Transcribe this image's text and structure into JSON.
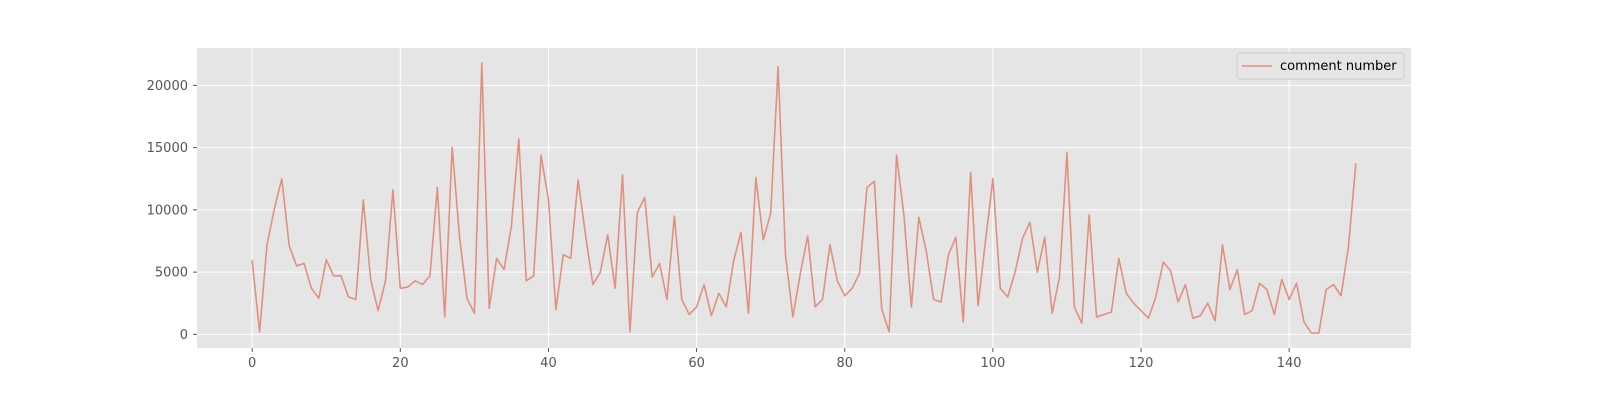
{
  "chart_data": {
    "type": "line",
    "style": "ggplot",
    "grid": true,
    "legend_position": "upper right",
    "xlim": [
      -7.45,
      156.45
    ],
    "ylim": [
      -1095,
      23000
    ],
    "x_ticks": [
      0,
      20,
      40,
      60,
      80,
      100,
      120,
      140
    ],
    "y_ticks": [
      0,
      5000,
      10000,
      15000,
      20000
    ],
    "x_tick_labels": [
      "0",
      "20",
      "40",
      "60",
      "80",
      "100",
      "120",
      "140"
    ],
    "y_tick_labels": [
      "0",
      "5000",
      "10000",
      "15000",
      "20000"
    ],
    "series": [
      {
        "name": "comment number",
        "color": "#e2907e",
        "x": [
          0,
          1,
          2,
          3,
          4,
          5,
          6,
          7,
          8,
          9,
          10,
          11,
          12,
          13,
          14,
          15,
          16,
          17,
          18,
          19,
          20,
          21,
          22,
          23,
          24,
          25,
          26,
          27,
          28,
          29,
          30,
          31,
          32,
          33,
          34,
          35,
          36,
          37,
          38,
          39,
          40,
          41,
          42,
          43,
          44,
          45,
          46,
          47,
          48,
          49,
          50,
          51,
          52,
          53,
          54,
          55,
          56,
          57,
          58,
          59,
          60,
          61,
          62,
          63,
          64,
          65,
          66,
          67,
          68,
          69,
          70,
          71,
          72,
          73,
          74,
          75,
          76,
          77,
          78,
          79,
          80,
          81,
          82,
          83,
          84,
          85,
          86,
          87,
          88,
          89,
          90,
          91,
          92,
          93,
          94,
          95,
          96,
          97,
          98,
          99,
          100,
          101,
          102,
          103,
          104,
          105,
          106,
          107,
          108,
          109,
          110,
          111,
          112,
          113,
          114,
          115,
          116,
          117,
          118,
          119,
          120,
          121,
          122,
          123,
          124,
          125,
          126,
          127,
          128,
          129,
          130,
          131,
          132,
          133,
          134,
          135,
          136,
          137,
          138,
          139,
          140,
          141,
          142,
          143,
          144,
          145,
          146,
          147,
          148,
          149
        ],
        "values": [
          5900,
          200,
          7200,
          10100,
          12500,
          7100,
          5500,
          5700,
          3700,
          2900,
          6000,
          4700,
          4700,
          3000,
          2800,
          10800,
          4400,
          1900,
          4300,
          11600,
          3700,
          3800,
          4300,
          4000,
          4700,
          11800,
          1400,
          15000,
          7800,
          2900,
          1700,
          21800,
          2100,
          6100,
          5200,
          8700,
          15700,
          4300,
          4700,
          14400,
          10800,
          2000,
          6400,
          6100,
          12400,
          8000,
          4000,
          5000,
          8000,
          3700,
          12800,
          200,
          9800,
          11000,
          4600,
          5700,
          2800,
          9500,
          2800,
          1600,
          2200,
          4000,
          1500,
          3300,
          2200,
          5900,
          8200,
          1700,
          12600,
          7600,
          9700,
          21500,
          6400,
          1400,
          4900,
          7900,
          2200,
          2800,
          7200,
          4300,
          3100,
          3700,
          4900,
          11800,
          12300,
          2000,
          200,
          14400,
          9500,
          2200,
          9400,
          6700,
          2800,
          2600,
          6400,
          7800,
          1000,
          13000,
          2300,
          7500,
          12500,
          3700,
          3000,
          5000,
          7700,
          9000,
          5000,
          7800,
          1700,
          4600,
          14600,
          2200,
          900,
          9600,
          1400,
          1600,
          1800,
          6100,
          3300,
          2500,
          1900,
          1300,
          3000,
          5800,
          5100,
          2600,
          4000,
          1300,
          1500,
          2500,
          1100,
          7200,
          3600,
          5200,
          1600,
          1900,
          4100,
          3600,
          1600,
          4400,
          2800,
          4100,
          1000,
          100,
          100,
          3600,
          4000,
          3100,
          7000,
          13700
        ]
      }
    ]
  }
}
